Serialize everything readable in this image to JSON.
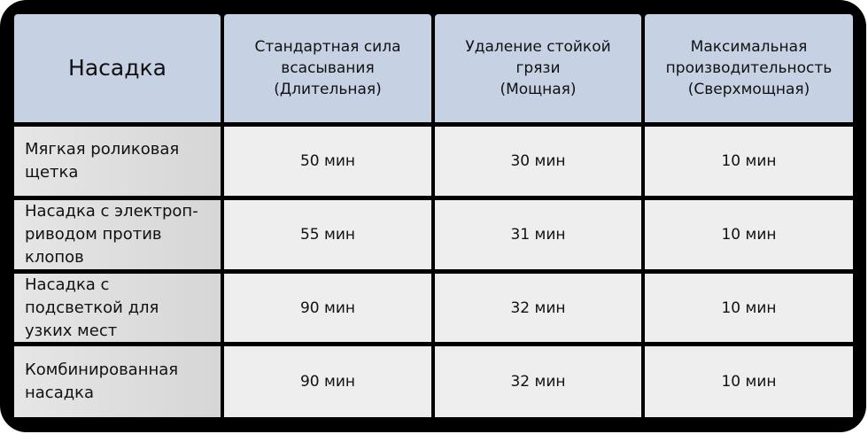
{
  "table": {
    "headers": [
      {
        "title": "Насадка"
      },
      {
        "title": "Стандартная сила всасывания",
        "mode": "(Длительная)"
      },
      {
        "title": "Удаление стойкой грязи",
        "mode": "(Мощная)"
      },
      {
        "title": "Максимальная производительность",
        "mode": "(Сверхмощная)"
      }
    ],
    "rows": [
      {
        "name": "Мягкая роликовая щетка",
        "values": [
          "50 мин",
          "30 мин",
          "10 мин"
        ]
      },
      {
        "name": "Насадка с электроп-риводом против клопов",
        "values": [
          "55 мин",
          "31 мин",
          "10 мин"
        ]
      },
      {
        "name": "Насадка с подсветкой для узких мест",
        "values": [
          "90 мин",
          "32 мин",
          "10 мин"
        ]
      },
      {
        "name": "Комбинированная насадка",
        "values": [
          "90 мин",
          "32 мин",
          "10 мин"
        ]
      }
    ]
  },
  "colors": {
    "header": "#c6d2e4",
    "first_column": "#dcdcdc",
    "cell": "#eeeeee",
    "border": "#000000"
  }
}
